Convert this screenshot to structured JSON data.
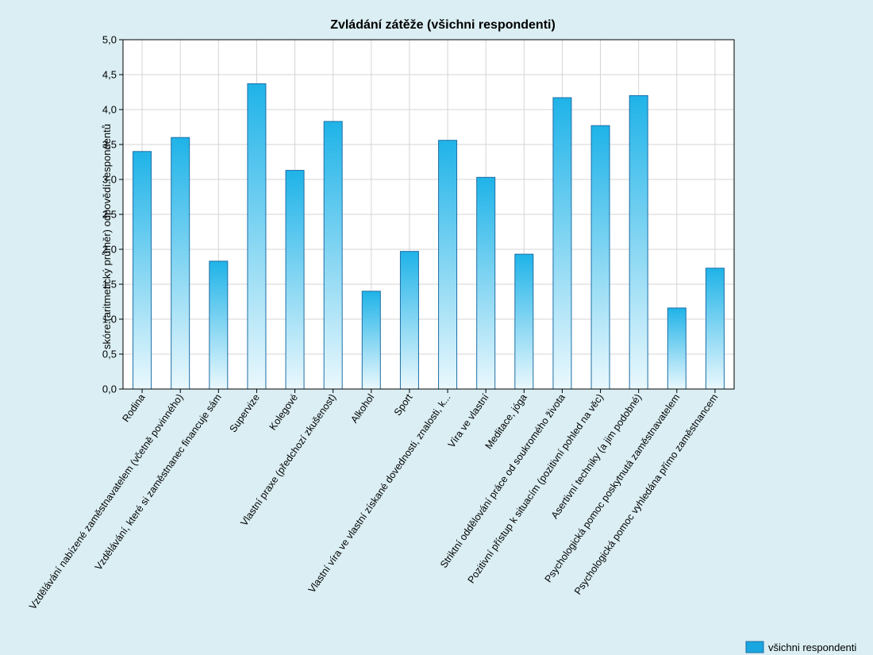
{
  "chart_data": {
    "type": "bar",
    "title": "Zvládání zátěže (všichni respondenti)",
    "xlabel": "",
    "ylabel": "skóre (aritmetický průměr) odpovědí respondentů",
    "ylim": [
      0,
      5
    ],
    "yticks": [
      "0,0",
      "0,5",
      "1,0",
      "1,5",
      "2,0",
      "2,5",
      "3,0",
      "3,5",
      "4,0",
      "4,5",
      "5,0"
    ],
    "grid": true,
    "legend_position": "bottom-right",
    "categories": [
      "Rodina",
      "Vzdělávání nabízené zaměstnavatelem (včetně povinného)",
      "Vzdělávání, které si zaměstnanec financuje sám",
      "Supervize",
      "Kolegové",
      "Vlastní praxe (předchozí zkušenost)",
      "Alkohol",
      "Sport",
      "Vlastní víra ve vlastní získané dovednosti, znalosti, k...",
      "Víra ve vlastní",
      "Meditace, jóga",
      "Striktní oddělování práce od soukromého života",
      "Pozitivní přístup k situacím (pozitivní pohled na věc)",
      "Asertivní techniky (a jim podobné)",
      "Psychologická pomoc poskytnutá zaměstnavatelem",
      "Psychologická pomoc vyhledána přímo zaměstnancem"
    ],
    "series": [
      {
        "name": "všichni respondenti",
        "values": [
          3.4,
          3.6,
          1.83,
          4.37,
          3.13,
          3.83,
          1.4,
          1.97,
          3.56,
          3.03,
          1.93,
          4.17,
          3.77,
          4.2,
          1.16,
          1.73
        ]
      }
    ],
    "colors": {
      "background": "#daeef3",
      "plot_area": "#ffffff",
      "grid": "#d4d4d4",
      "bar_top": "#1fb3e8",
      "bar_bottom": "#eaf8fd",
      "bar_stroke": "#1f6fa6",
      "legend_swatch": "#1aa6e0"
    }
  }
}
